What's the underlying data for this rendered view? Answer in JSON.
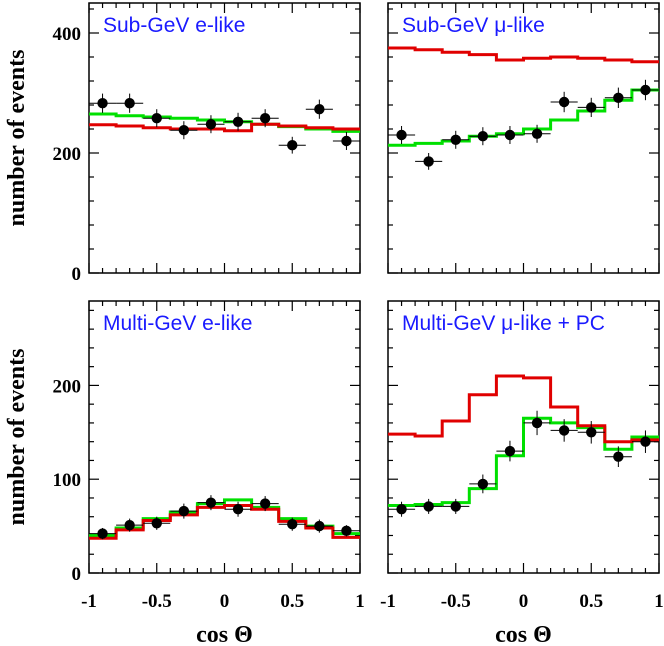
{
  "chart_data": [
    {
      "type": "line",
      "title": "Sub-GeV e-like",
      "ylabel": "number of events",
      "xlabel": "",
      "xlim": [
        -1,
        1
      ],
      "ylim": [
        0,
        450
      ],
      "yticks": [
        0,
        200,
        400
      ],
      "bin_edges": [
        -1,
        -0.8,
        -0.6,
        -0.4,
        -0.2,
        0,
        0.2,
        0.4,
        0.6,
        0.8,
        1
      ],
      "series": [
        {
          "name": "",
          "color": "#00e000",
          "kind": "histogram",
          "values": [
            265,
            262,
            260,
            258,
            255,
            252,
            248,
            244,
            240,
            236
          ]
        },
        {
          "name": "",
          "color": "#e00000",
          "kind": "histogram",
          "values": [
            247,
            245,
            242,
            240,
            240,
            237,
            248,
            245,
            242,
            240
          ]
        },
        {
          "name": "",
          "color": "#000000",
          "kind": "points",
          "x": [
            -0.9,
            -0.7,
            -0.5,
            -0.3,
            -0.1,
            0.1,
            0.3,
            0.5,
            0.7,
            0.9
          ],
          "values": [
            283,
            283,
            258,
            238,
            248,
            252,
            258,
            213,
            273,
            220
          ],
          "errors": [
            16,
            16,
            15,
            15,
            15,
            15,
            15,
            14,
            16,
            15
          ]
        }
      ]
    },
    {
      "type": "line",
      "title": "Sub-GeV μ-like",
      "ylabel": "",
      "xlabel": "",
      "xlim": [
        -1,
        1
      ],
      "ylim": [
        0,
        450
      ],
      "yticks": [
        0,
        200,
        400
      ],
      "bin_edges": [
        -1,
        -0.8,
        -0.6,
        -0.4,
        -0.2,
        0,
        0.2,
        0.4,
        0.6,
        0.8,
        1
      ],
      "series": [
        {
          "name": "",
          "color": "#00e000",
          "kind": "histogram",
          "values": [
            213,
            216,
            220,
            228,
            232,
            240,
            255,
            270,
            288,
            305
          ]
        },
        {
          "name": "",
          "color": "#e00000",
          "kind": "histogram",
          "values": [
            375,
            372,
            368,
            364,
            355,
            358,
            360,
            358,
            355,
            352
          ]
        },
        {
          "name": "",
          "color": "#000000",
          "kind": "points",
          "x": [
            -0.9,
            -0.7,
            -0.5,
            -0.3,
            -0.1,
            0.1,
            0.3,
            0.5,
            0.7,
            0.9
          ],
          "values": [
            230,
            186,
            222,
            228,
            230,
            232,
            285,
            276,
            292,
            305
          ],
          "errors": [
            15,
            14,
            15,
            15,
            15,
            15,
            17,
            16,
            17,
            17
          ]
        }
      ]
    },
    {
      "type": "line",
      "title": "Multi-GeV e-like",
      "ylabel": "number of events",
      "xlabel": "cos Θ",
      "xlim": [
        -1,
        1
      ],
      "ylim": [
        0,
        290
      ],
      "yticks": [
        0,
        100,
        200
      ],
      "xticks": [
        -1,
        -0.5,
        0,
        0.5,
        1
      ],
      "xtick_labels": [
        "-1",
        "-0.5",
        "0",
        "0.5",
        "1"
      ],
      "bin_edges": [
        -1,
        -0.8,
        -0.6,
        -0.4,
        -0.2,
        0,
        0.2,
        0.4,
        0.6,
        0.8,
        1
      ],
      "series": [
        {
          "name": "",
          "color": "#00e000",
          "kind": "histogram",
          "values": [
            40,
            48,
            58,
            65,
            74,
            78,
            70,
            58,
            50,
            42
          ]
        },
        {
          "name": "",
          "color": "#e00000",
          "kind": "histogram",
          "values": [
            37,
            46,
            56,
            62,
            70,
            72,
            68,
            55,
            48,
            38
          ]
        },
        {
          "name": "",
          "color": "#000000",
          "kind": "points",
          "x": [
            -0.9,
            -0.7,
            -0.5,
            -0.3,
            -0.1,
            0.1,
            0.3,
            0.5,
            0.7,
            0.9
          ],
          "values": [
            42,
            51,
            53,
            66,
            75,
            68,
            74,
            52,
            50,
            45
          ],
          "errors": [
            6,
            7,
            7,
            8,
            8,
            8,
            8,
            7,
            7,
            6
          ]
        }
      ]
    },
    {
      "type": "line",
      "title": "Multi-GeV μ-like + PC",
      "ylabel": "",
      "xlabel": "cos Θ",
      "xlim": [
        -1,
        1
      ],
      "ylim": [
        0,
        290
      ],
      "yticks": [
        0,
        100,
        200
      ],
      "xticks": [
        -1,
        -0.5,
        0,
        0.5,
        1
      ],
      "xtick_labels": [
        "-1",
        "-0.5",
        "0",
        "0.5",
        "1"
      ],
      "bin_edges": [
        -1,
        -0.8,
        -0.6,
        -0.4,
        -0.2,
        0,
        0.2,
        0.4,
        0.6,
        0.8,
        1
      ],
      "series": [
        {
          "name": "",
          "color": "#00e000",
          "kind": "histogram",
          "values": [
            72,
            73,
            75,
            90,
            125,
            165,
            160,
            155,
            132,
            145
          ]
        },
        {
          "name": "",
          "color": "#e00000",
          "kind": "histogram",
          "values": [
            148,
            146,
            162,
            190,
            210,
            208,
            177,
            157,
            140,
            142
          ]
        },
        {
          "name": "",
          "color": "#000000",
          "kind": "points",
          "x": [
            -0.9,
            -0.7,
            -0.5,
            -0.3,
            -0.1,
            0.1,
            0.3,
            0.5,
            0.7,
            0.9
          ],
          "values": [
            68,
            71,
            71,
            95,
            130,
            160,
            152,
            150,
            124,
            140
          ],
          "errors": [
            8,
            8,
            8,
            10,
            11,
            13,
            12,
            12,
            11,
            12
          ]
        }
      ]
    }
  ]
}
